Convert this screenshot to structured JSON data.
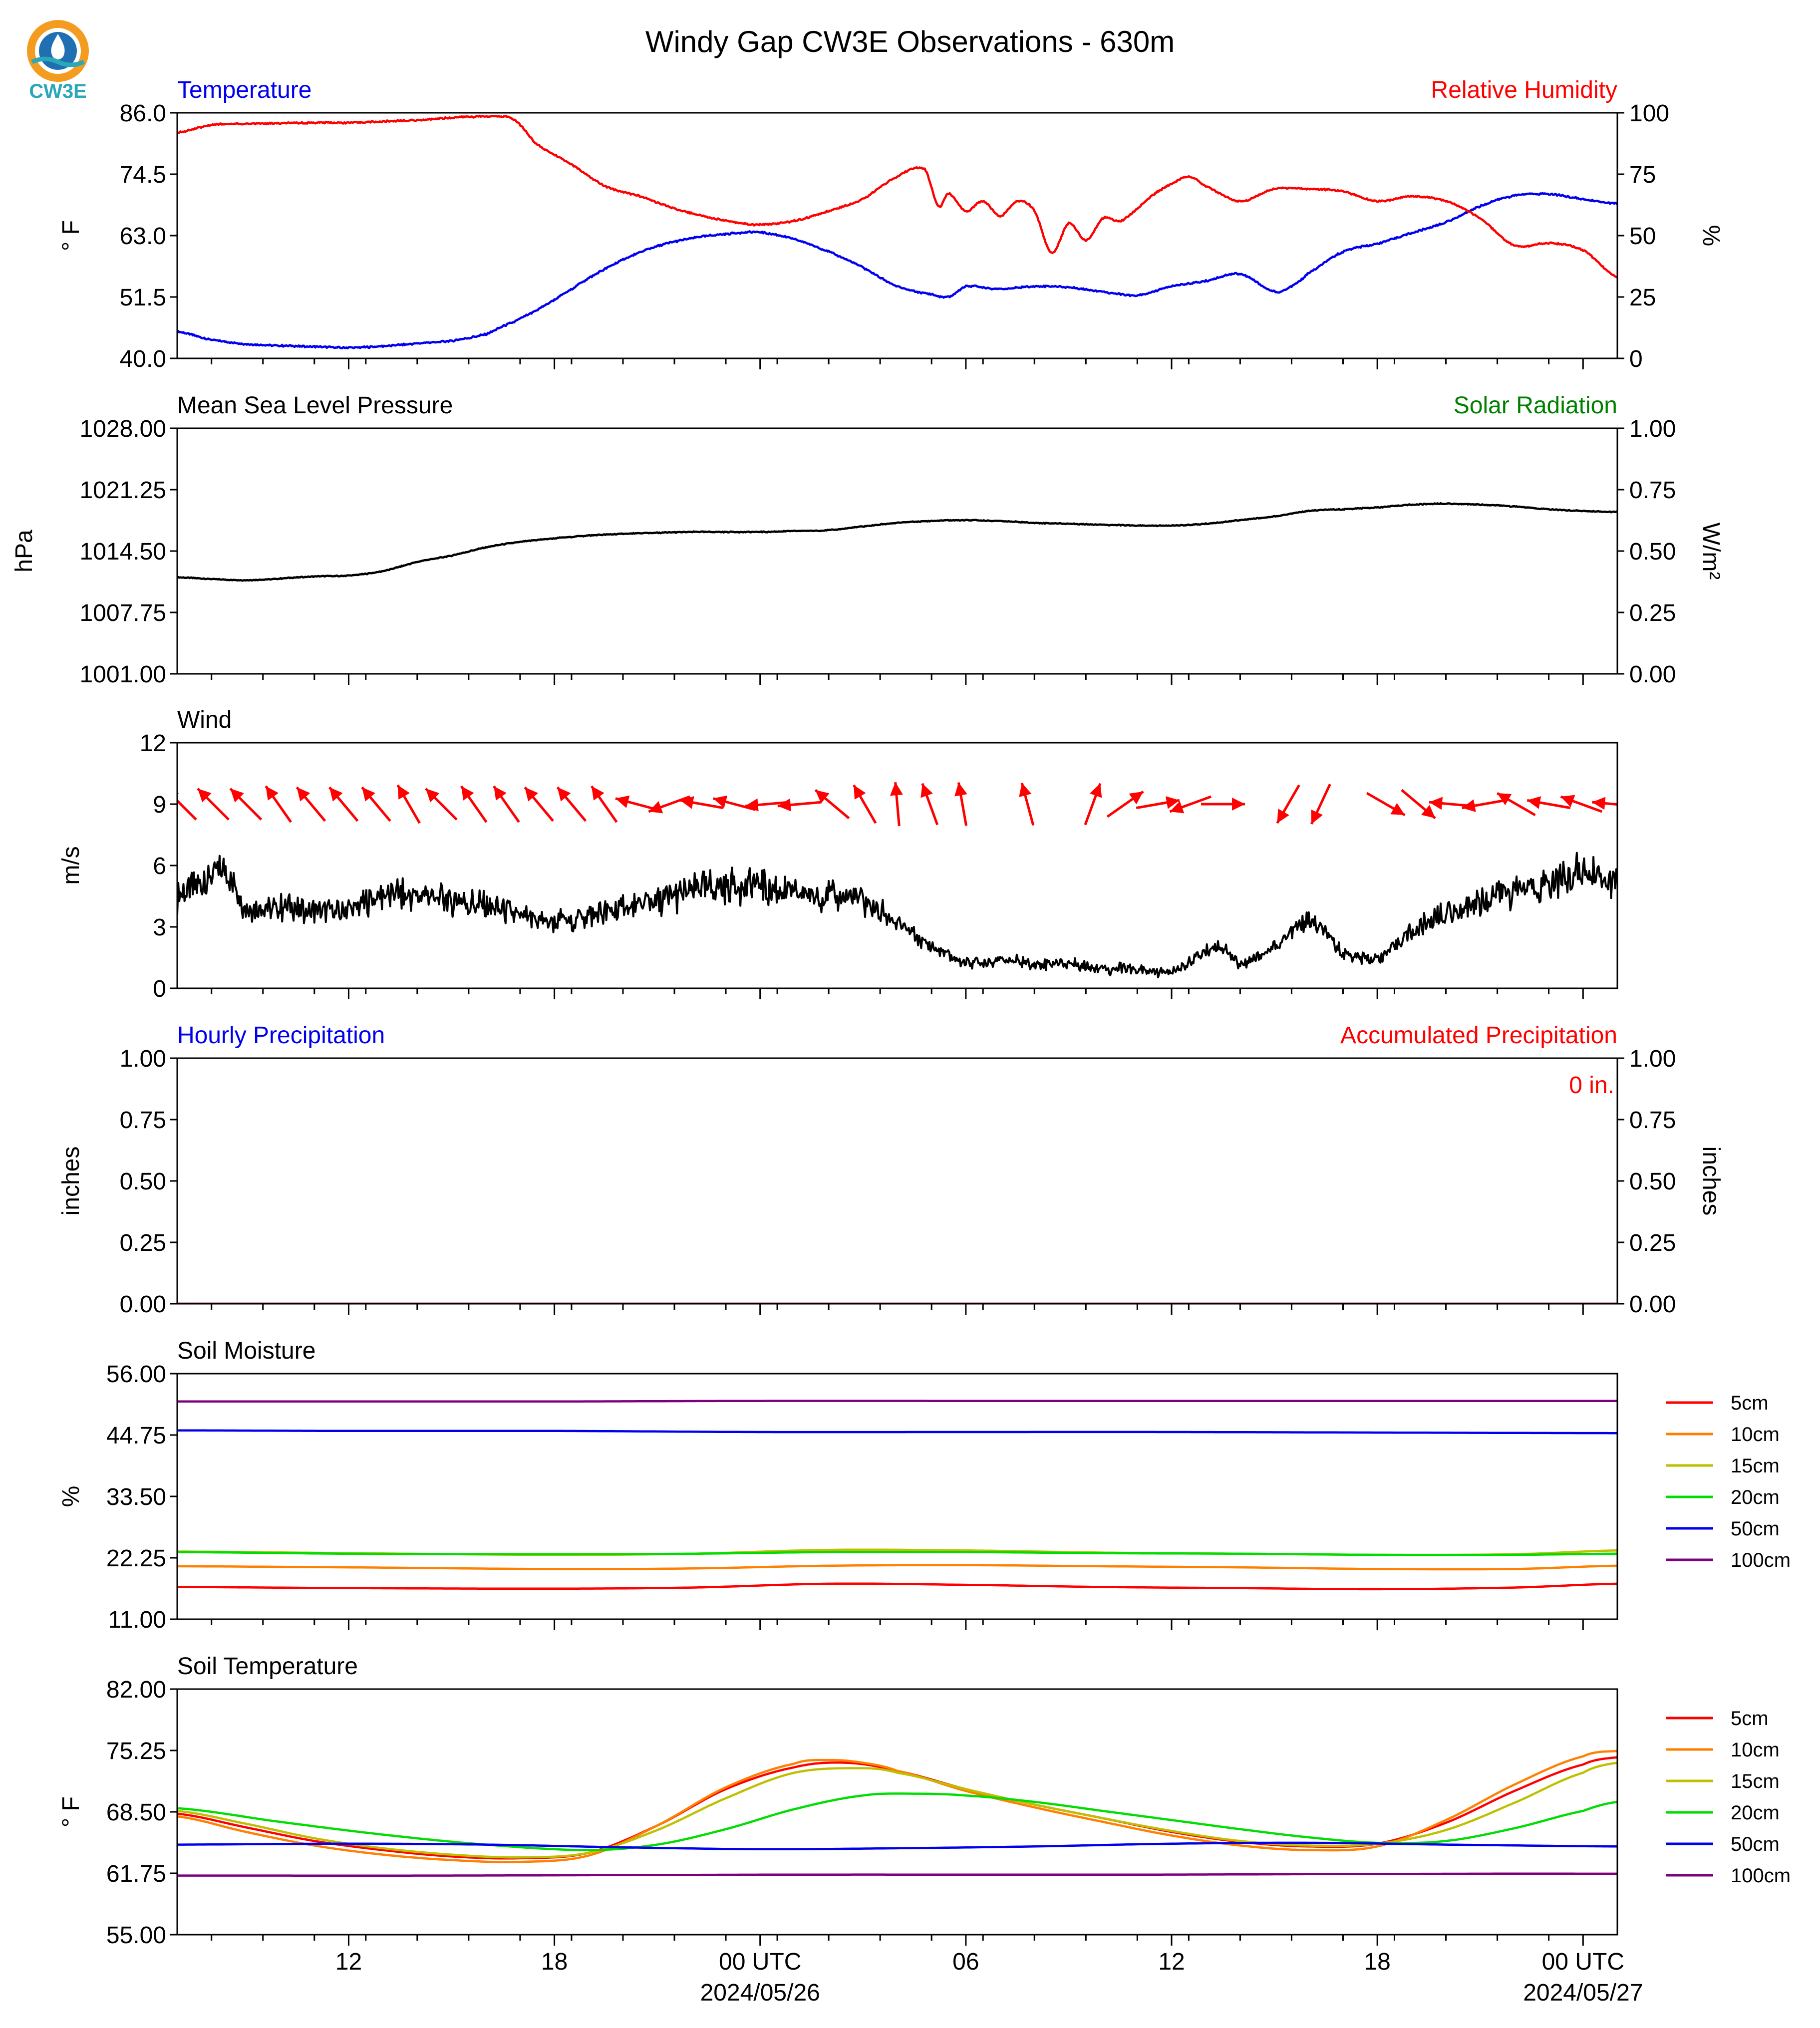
{
  "title": "Windy Gap CW3E Observations - 630m",
  "logo": {
    "text": "CW3E",
    "colors": {
      "orange": "#f39c1f",
      "blue": "#1f6fb2",
      "teal": "#2aa7b8"
    }
  },
  "time_axis": {
    "tick_labels": [
      "12",
      "18",
      "00 UTC",
      "06",
      "12",
      "18",
      "00 UTC"
    ],
    "tick_hours": [
      12,
      18,
      24,
      30,
      36,
      42,
      48
    ],
    "date_labels": [
      "2024/05/26",
      "2024/05/27"
    ],
    "date_hours": [
      24,
      48
    ],
    "range_hours": [
      7,
      49
    ]
  },
  "colors": {
    "red": "#ff0000",
    "blue": "#0000ee",
    "green": "#008000",
    "black": "#000000"
  },
  "chart_data": [
    {
      "type": "line",
      "panel": "temperature_humidity",
      "left_title": "Temperature",
      "right_title": "Relative Humidity",
      "ylabel_left": "° F",
      "ylabel_right": "%",
      "ylim_left": [
        40.0,
        86.0
      ],
      "yticks_left": [
        "86.0",
        "74.5",
        "63.0",
        "51.5",
        "40.0"
      ],
      "ylim_right": [
        0,
        100
      ],
      "yticks_right": [
        "100",
        "75",
        "50",
        "25",
        "0"
      ],
      "series": [
        {
          "name": "Temperature",
          "axis": "left",
          "color": "#0000ee",
          "x": [
            7,
            8,
            9,
            10,
            11,
            12,
            13,
            14,
            15,
            16,
            16.5,
            17,
            18,
            19,
            20,
            21,
            22,
            23,
            24,
            25,
            26,
            27,
            28,
            29,
            29.5,
            30,
            31,
            32,
            33,
            34,
            35,
            36,
            37,
            38,
            39,
            39.5,
            40,
            41,
            42,
            43,
            44,
            45,
            46,
            47,
            48,
            49
          ],
          "y": [
            45.0,
            43.5,
            42.7,
            42.4,
            42.2,
            42.0,
            42.3,
            42.8,
            43.3,
            44.5,
            46,
            47.5,
            51.0,
            55.0,
            58.5,
            61.0,
            62.5,
            63.3,
            63.6,
            62.3,
            60.0,
            57.0,
            53.5,
            52.0,
            51.5,
            53.5,
            53.0,
            53.5,
            53.3,
            52.5,
            51.8,
            53.5,
            54.5,
            55.8,
            52.5,
            53.5,
            56.0,
            60.0,
            61.5,
            63.5,
            65.5,
            68.5,
            70.5,
            70.8,
            69.8,
            69.0
          ]
        },
        {
          "name": "Relative Humidity",
          "axis": "right",
          "color": "#ff0000",
          "x": [
            7,
            8,
            9,
            10,
            11,
            12,
            13,
            14,
            15,
            16,
            16.8,
            17.5,
            18.5,
            19.5,
            20.5,
            21.5,
            22.5,
            23.5,
            24,
            25,
            26,
            27,
            28,
            28.8,
            29.2,
            29.5,
            30,
            30.5,
            31,
            31.5,
            32,
            32.5,
            33,
            33.5,
            34,
            34.5,
            35,
            35.5,
            36,
            36.5,
            37,
            38,
            39,
            40,
            41,
            42,
            43,
            44,
            45,
            46,
            47,
            48,
            49
          ],
          "y": [
            92,
            95,
            95.5,
            95.7,
            96,
            96,
            96.5,
            97,
            98,
            98.5,
            97.5,
            87,
            79,
            70,
            66,
            61,
            57.5,
            55,
            54.5,
            56,
            60,
            65,
            74,
            77,
            62,
            67,
            60,
            64,
            58,
            64,
            60,
            43,
            55,
            48,
            57,
            56,
            61,
            67,
            71,
            74,
            70,
            64,
            69,
            69,
            68,
            64,
            66,
            64,
            57,
            46,
            47,
            44,
            33
          ]
        }
      ]
    },
    {
      "type": "line",
      "panel": "pressure_solar",
      "left_title": "Mean Sea Level Pressure",
      "right_title": "Solar Radiation",
      "ylabel_left": "hPa",
      "ylabel_right": "W/m²",
      "ylim_left": [
        1001.0,
        1028.0
      ],
      "yticks_left": [
        "1028.00",
        "1021.25",
        "1014.50",
        "1007.75",
        "1001.00"
      ],
      "ylim_right": [
        0.0,
        1.0
      ],
      "yticks_right": [
        "1.00",
        "0.75",
        "0.50",
        "0.25",
        "0.00"
      ],
      "series": [
        {
          "name": "Mean Sea Level Pressure",
          "axis": "left",
          "color": "#000000",
          "x": [
            7,
            9,
            11,
            12,
            13,
            14,
            15,
            16,
            17,
            18,
            19,
            20,
            21,
            22,
            23,
            24,
            25,
            26,
            27,
            28,
            29,
            30,
            31,
            32,
            33,
            34,
            35,
            36,
            37,
            38,
            39,
            40,
            41,
            42,
            43,
            44,
            45,
            46,
            47,
            48,
            49
          ],
          "y": [
            1011.6,
            1011.3,
            1011.7,
            1011.8,
            1012.3,
            1013.3,
            1014.0,
            1014.9,
            1015.5,
            1015.9,
            1016.2,
            1016.4,
            1016.5,
            1016.6,
            1016.6,
            1016.6,
            1016.7,
            1016.8,
            1017.2,
            1017.6,
            1017.8,
            1017.9,
            1017.8,
            1017.6,
            1017.5,
            1017.4,
            1017.3,
            1017.3,
            1017.5,
            1017.9,
            1018.3,
            1018.9,
            1019.1,
            1019.3,
            1019.6,
            1019.7,
            1019.6,
            1019.4,
            1019.1,
            1018.9,
            1018.8
          ]
        }
      ]
    },
    {
      "type": "line",
      "panel": "wind",
      "left_title": "Wind",
      "ylabel_left": "m/s",
      "ylim_left": [
        0,
        12
      ],
      "yticks_left": [
        "12",
        "9",
        "6",
        "3",
        "0"
      ],
      "series": [
        {
          "name": "Wind speed",
          "axis": "left",
          "color": "#000000",
          "x": [
            7,
            8,
            8.5,
            9,
            10,
            11,
            12,
            13,
            14,
            15,
            16,
            17,
            18,
            19,
            20,
            21,
            22,
            23,
            24,
            25,
            26,
            27,
            28,
            29,
            30,
            31,
            32,
            33,
            34,
            35,
            36,
            37,
            37.5,
            38,
            39,
            40,
            41,
            42,
            43,
            44,
            45,
            46,
            47,
            48,
            49
          ],
          "y": [
            4.5,
            5.5,
            5.5,
            4.0,
            4.0,
            3.8,
            3.8,
            4.6,
            4.5,
            4.3,
            4.0,
            3.5,
            3.3,
            3.5,
            4.0,
            4.2,
            4.8,
            5.0,
            5.0,
            4.6,
            4.6,
            4.2,
            3.2,
            2.0,
            1.3,
            1.4,
            1.2,
            1.2,
            1.0,
            0.9,
            0.8,
            1.8,
            2.0,
            1.2,
            2.0,
            3.2,
            1.8,
            1.5,
            2.8,
            3.6,
            4.2,
            4.8,
            5.2,
            5.6,
            5.2
          ]
        },
        {
          "name": "Wind direction",
          "type": "arrows",
          "color": "#ff0000",
          "arrows_start_hour": 7.1,
          "arrows_step_hours": 0.95,
          "arrow_level": 9,
          "dirs": [
            135,
            135,
            135,
            145,
            140,
            140,
            140,
            150,
            135,
            145,
            145,
            140,
            140,
            145,
            105,
            70,
            100,
            105,
            85,
            85,
            130,
            150,
            175,
            160,
            170,
            null,
            165,
            null,
            200,
            235,
            260,
            70,
            270,
            null,
            30,
            25,
            null,
            300,
            310,
            95,
            80,
            120,
            100,
            110,
            95
          ]
        }
      ]
    },
    {
      "type": "line",
      "panel": "precipitation",
      "left_title": "Hourly Precipitation",
      "right_title": "Accumulated Precipitation",
      "accum_label": "0 in.",
      "ylabel_left": "inches",
      "ylabel_right": "inches",
      "ylim_left": [
        0.0,
        1.0
      ],
      "yticks_left": [
        "1.00",
        "0.75",
        "0.50",
        "0.25",
        "0.00"
      ],
      "ylim_right": [
        0.0,
        1.0
      ],
      "yticks_right": [
        "1.00",
        "0.75",
        "0.50",
        "0.25",
        "0.00"
      ],
      "series": [
        {
          "name": "Hourly Precipitation",
          "axis": "left",
          "color": "#0000ee",
          "x": [
            7,
            49
          ],
          "y": [
            0,
            0
          ]
        },
        {
          "name": "Accumulated Precipitation",
          "axis": "right",
          "color": "#ff0000",
          "x": [
            7,
            49
          ],
          "y": [
            0,
            0
          ]
        }
      ]
    },
    {
      "type": "line",
      "panel": "soil_moisture",
      "left_title": "Soil Moisture",
      "ylabel_left": "%",
      "ylim_left": [
        11.0,
        56.0
      ],
      "yticks_left": [
        "56.00",
        "44.75",
        "33.50",
        "22.25",
        "11.00"
      ],
      "legend": [
        "5cm",
        "10cm",
        "15cm",
        "20cm",
        "50cm",
        "100cm"
      ],
      "series": [
        {
          "name": "5cm",
          "color": "#ff0000",
          "x": [
            7,
            12,
            18,
            22,
            26,
            30,
            34,
            38,
            42,
            46,
            49
          ],
          "y": [
            16.9,
            16.7,
            16.6,
            16.8,
            17.5,
            17.3,
            16.9,
            16.7,
            16.5,
            16.8,
            17.5
          ]
        },
        {
          "name": "10cm",
          "color": "#ff8000",
          "x": [
            7,
            12,
            18,
            22,
            26,
            30,
            34,
            38,
            42,
            46,
            49
          ],
          "y": [
            20.7,
            20.5,
            20.2,
            20.3,
            20.8,
            20.9,
            20.7,
            20.5,
            20.2,
            20.2,
            20.8
          ]
        },
        {
          "name": "15cm",
          "color": "#bfbf00",
          "x": [
            7,
            12,
            18,
            22,
            26,
            30,
            34,
            38,
            42,
            46,
            49
          ],
          "y": [
            23.4,
            23.1,
            22.8,
            23.0,
            23.7,
            23.6,
            23.2,
            23.0,
            22.8,
            22.9,
            23.6
          ]
        },
        {
          "name": "20cm",
          "color": "#00dd00",
          "x": [
            7,
            12,
            18,
            22,
            26,
            30,
            34,
            38,
            42,
            46,
            49
          ],
          "y": [
            23.3,
            23.0,
            22.9,
            23.0,
            23.3,
            23.3,
            23.1,
            23.0,
            22.8,
            22.8,
            23.0
          ]
        },
        {
          "name": "50cm",
          "color": "#0000ee",
          "x": [
            7,
            12,
            18,
            24,
            30,
            36,
            42,
            49
          ],
          "y": [
            45.6,
            45.5,
            45.5,
            45.3,
            45.3,
            45.3,
            45.2,
            45.1
          ]
        },
        {
          "name": "100cm",
          "color": "#7f007f",
          "x": [
            7,
            12,
            18,
            24,
            30,
            36,
            42,
            49
          ],
          "y": [
            50.9,
            50.9,
            50.9,
            51.0,
            51.0,
            51.0,
            51.0,
            51.0
          ]
        }
      ]
    },
    {
      "type": "line",
      "panel": "soil_temperature",
      "left_title": "Soil Temperature",
      "ylabel_left": "° F",
      "ylim_left": [
        55.0,
        82.0
      ],
      "yticks_left": [
        "82.00",
        "75.25",
        "68.50",
        "61.75",
        "55.00"
      ],
      "legend": [
        "5cm",
        "10cm",
        "15cm",
        "20cm",
        "50cm",
        "100cm"
      ],
      "series": [
        {
          "name": "5cm",
          "color": "#ff0000",
          "x": [
            7,
            9,
            11,
            13,
            15,
            17,
            19,
            21,
            23,
            25,
            26.5,
            28,
            30,
            32,
            34,
            36,
            38,
            40,
            42,
            44,
            46,
            48,
            49
          ],
          "y": [
            68.3,
            66.8,
            65.3,
            64.3,
            63.6,
            63.4,
            64.0,
            67.0,
            71.0,
            73.4,
            73.9,
            73.0,
            71.0,
            69.3,
            67.8,
            66.3,
            65.2,
            64.7,
            65.0,
            67.3,
            70.8,
            73.7,
            74.5
          ]
        },
        {
          "name": "10cm",
          "color": "#ff8000",
          "x": [
            7,
            9,
            11,
            13,
            15,
            17,
            19,
            21,
            23,
            25,
            26,
            27,
            28,
            30,
            32,
            34,
            36,
            38,
            40,
            42,
            44,
            46,
            48,
            49
          ],
          "y": [
            68.0,
            66.3,
            64.8,
            63.8,
            63.2,
            63.0,
            63.7,
            67.0,
            71.2,
            73.8,
            74.2,
            73.9,
            73.0,
            70.8,
            69.0,
            67.4,
            65.9,
            64.8,
            64.3,
            64.7,
            67.6,
            71.5,
            74.6,
            75.2
          ]
        },
        {
          "name": "15cm",
          "color": "#bfbf00",
          "x": [
            7,
            9,
            11,
            13,
            15,
            17,
            19,
            21,
            23,
            25,
            27,
            28,
            30,
            32,
            34,
            36,
            38,
            40,
            42,
            44,
            46,
            48,
            49
          ],
          "y": [
            68.6,
            67.2,
            65.6,
            64.5,
            63.8,
            63.5,
            64.0,
            66.5,
            70.0,
            72.8,
            73.3,
            72.8,
            71.0,
            69.3,
            67.8,
            66.4,
            65.3,
            64.8,
            65.0,
            66.5,
            69.5,
            72.8,
            73.9
          ]
        },
        {
          "name": "20cm",
          "color": "#00dd00",
          "x": [
            7,
            10,
            13,
            16,
            19,
            21,
            23,
            25,
            27,
            28.5,
            30,
            32,
            34,
            36,
            38,
            40,
            42,
            44,
            46,
            48,
            49
          ],
          "y": [
            68.9,
            67.4,
            66.0,
            64.9,
            64.3,
            64.9,
            66.6,
            68.8,
            70.3,
            70.5,
            70.3,
            69.6,
            68.6,
            67.6,
            66.6,
            65.7,
            65.1,
            65.3,
            66.7,
            68.6,
            69.6
          ]
        },
        {
          "name": "50cm",
          "color": "#0000ee",
          "x": [
            7,
            12,
            16,
            20,
            24,
            28,
            32,
            36,
            40,
            44,
            49
          ],
          "y": [
            64.9,
            65.0,
            64.9,
            64.6,
            64.4,
            64.5,
            64.7,
            65.0,
            65.1,
            64.9,
            64.7
          ]
        },
        {
          "name": "100cm",
          "color": "#7f007f",
          "x": [
            7,
            15,
            25,
            35,
            45,
            49
          ],
          "y": [
            61.5,
            61.5,
            61.6,
            61.6,
            61.7,
            61.7
          ]
        }
      ]
    }
  ]
}
